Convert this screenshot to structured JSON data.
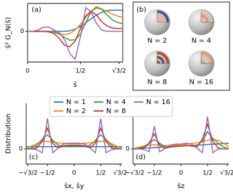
{
  "chart_data": [
    {
      "type": "line",
      "panel_label": "(a)",
      "x_label": "s̄",
      "y_label": "s̄² G_N(s̄)",
      "x": [
        0,
        0.05,
        0.1,
        0.15,
        0.2,
        0.25,
        0.3,
        0.35,
        0.4,
        0.45,
        0.5,
        0.55,
        0.6,
        0.65,
        0.7,
        0.75,
        0.8,
        0.85,
        0.9
      ],
      "xlim": [
        0,
        0.9
      ],
      "ylim": [
        -1.1,
        1
      ],
      "xticks": [
        0,
        {
          "value": 0.5,
          "label": "1/2"
        },
        {
          "value": 0.866,
          "label": "√3/2"
        }
      ],
      "yticks": [
        0
      ],
      "series": [
        {
          "color": "#1f77b4",
          "values": [
            0,
            0,
            0,
            0,
            0,
            0,
            0,
            0,
            0.02,
            0.08,
            0.18,
            0.3,
            0.45,
            0.58,
            0.68,
            0.74,
            0.76,
            0.76,
            0.76
          ]
        },
        {
          "color": "#ff7f0e",
          "values": [
            0,
            0,
            0,
            0,
            0,
            -0.02,
            -0.08,
            -0.12,
            -0.08,
            0.05,
            0.25,
            0.5,
            0.72,
            0.82,
            0.8,
            0.72,
            0.62,
            0.55,
            0.5
          ]
        },
        {
          "color": "#2ca02c",
          "values": [
            0,
            0,
            0,
            0,
            0,
            -0.03,
            -0.1,
            -0.22,
            -0.32,
            -0.3,
            -0.1,
            0.3,
            0.7,
            0.88,
            0.8,
            0.6,
            0.42,
            0.32,
            0.28
          ]
        },
        {
          "color": "#d62728",
          "values": [
            0,
            0,
            0,
            0,
            -0.02,
            -0.08,
            -0.25,
            -0.5,
            -0.55,
            -0.35,
            0.1,
            0.55,
            0.72,
            0.6,
            0.35,
            0.2,
            0.12,
            0.1,
            0.1
          ]
        },
        {
          "color": "#9467bd",
          "values": [
            0,
            0,
            0.05,
            0.15,
            0.15,
            0.05,
            -0.05,
            -0.3,
            -0.8,
            -1.0,
            -0.2,
            0.85,
            0.7,
            0.3,
            0.05,
            0,
            0,
            0,
            0
          ]
        }
      ]
    },
    {
      "type": "line",
      "panel_label": "(c)",
      "x_label": "s̄x, s̄y",
      "y_label": "Distribution",
      "x": [
        -0.9,
        -0.8,
        -0.7,
        -0.6,
        -0.5,
        -0.4,
        -0.3,
        -0.2,
        -0.1,
        0,
        0.1,
        0.2,
        0.3,
        0.4,
        0.5,
        0.6,
        0.7,
        0.8,
        0.9
      ],
      "xlim": [
        -0.9,
        0.9
      ],
      "ylim": [
        -0.8,
        2.4
      ],
      "xticks": [
        {
          "value": -0.866,
          "label": "−√3/2"
        },
        {
          "value": -0.5,
          "label": "−1/2"
        },
        0,
        {
          "value": 0.5,
          "label": "1/2"
        },
        {
          "value": 0.866,
          "label": "√3/2"
        }
      ],
      "yticks": [
        0
      ],
      "series": [
        {
          "name": "N = 1",
          "color": "#1f77b4",
          "values": [
            0.12,
            0.12,
            0.12,
            0.12,
            0.12,
            0.12,
            0.12,
            0.12,
            0.12,
            0.12,
            0.12,
            0.12,
            0.12,
            0.12,
            0.12,
            0.12,
            0.12,
            0.12,
            0.12
          ]
        },
        {
          "name": "N = 2",
          "color": "#ff7f0e",
          "values": [
            0.05,
            0.15,
            0.28,
            0.38,
            0.4,
            0.36,
            0.32,
            0.3,
            0.28,
            0.28,
            0.28,
            0.3,
            0.32,
            0.36,
            0.4,
            0.38,
            0.28,
            0.15,
            0.05
          ]
        },
        {
          "name": "N = 4",
          "color": "#2ca02c",
          "values": [
            0,
            0.05,
            0.2,
            0.5,
            0.75,
            0.45,
            0.2,
            0.15,
            0.15,
            0.15,
            0.15,
            0.15,
            0.2,
            0.45,
            0.75,
            0.5,
            0.2,
            0.05,
            0
          ]
        },
        {
          "name": "N = 8",
          "color": "#d62728",
          "values": [
            0,
            0,
            0.05,
            0.4,
            1.1,
            0.3,
            0.05,
            0.15,
            0.2,
            0.2,
            0.2,
            0.15,
            0.05,
            0.3,
            1.1,
            0.4,
            0.05,
            0,
            0
          ]
        },
        {
          "name": "N = 16",
          "color": "#9467bd",
          "values": [
            0,
            0,
            -0.05,
            -0.2,
            1.6,
            -0.2,
            0.05,
            0.25,
            0.3,
            0.3,
            0.3,
            0.25,
            0.05,
            -0.2,
            1.6,
            -0.2,
            -0.05,
            0,
            0
          ]
        }
      ]
    },
    {
      "type": "line",
      "panel_label": "(d)",
      "x_label": "s̄z",
      "x": [
        -0.9,
        -0.8,
        -0.7,
        -0.6,
        -0.5,
        -0.4,
        -0.3,
        -0.2,
        -0.1,
        0,
        0.1,
        0.2,
        0.3,
        0.4,
        0.5,
        0.6,
        0.7,
        0.8,
        0.9
      ],
      "xlim": [
        -0.9,
        0.9
      ],
      "ylim": [
        -0.8,
        2.4
      ],
      "xticks": [
        {
          "value": -0.866,
          "label": "−√3/2"
        },
        {
          "value": -0.5,
          "label": "−1/2"
        },
        0,
        {
          "value": 0.5,
          "label": "1/2"
        },
        {
          "value": 0.866,
          "label": "√3/2"
        }
      ],
      "yticks": [
        0
      ],
      "series": [
        {
          "color": "#1f77b4",
          "values": [
            0,
            0.02,
            0.04,
            0.05,
            0.07,
            0.09,
            0.1,
            0.12,
            0.13,
            0.15,
            0.17,
            0.18,
            0.2,
            0.21,
            0.23,
            0.25,
            0.26,
            0.28,
            0.3
          ]
        },
        {
          "color": "#ff7f0e",
          "values": [
            0.02,
            0.08,
            0.15,
            0.2,
            0.22,
            0.2,
            0.18,
            0.18,
            0.2,
            0.22,
            0.25,
            0.28,
            0.32,
            0.38,
            0.45,
            0.48,
            0.45,
            0.3,
            0.1
          ]
        },
        {
          "color": "#2ca02c",
          "values": [
            0,
            0.03,
            0.1,
            0.3,
            0.5,
            0.3,
            0.12,
            0.1,
            0.12,
            0.15,
            0.18,
            0.15,
            0.18,
            0.4,
            0.9,
            0.55,
            0.3,
            0.1,
            0
          ]
        },
        {
          "color": "#d62728",
          "values": [
            0,
            0,
            0.03,
            0.3,
            0.8,
            0.2,
            0.02,
            0.1,
            0.15,
            0.15,
            0.18,
            0.15,
            0.1,
            0.5,
            1.3,
            0.4,
            0.05,
            0,
            0
          ]
        },
        {
          "color": "#9467bd",
          "values": [
            0,
            0,
            -0.03,
            -0.15,
            1.2,
            -0.15,
            0.02,
            0.2,
            0.25,
            0.25,
            0.3,
            0.25,
            0.05,
            -0.2,
            1.7,
            -0.2,
            0,
            0,
            0
          ]
        }
      ]
    }
  ],
  "panel_b": {
    "label": "(b)",
    "captions": [
      "N = 2",
      "N = 4",
      "N = 8",
      "N = 16"
    ]
  }
}
